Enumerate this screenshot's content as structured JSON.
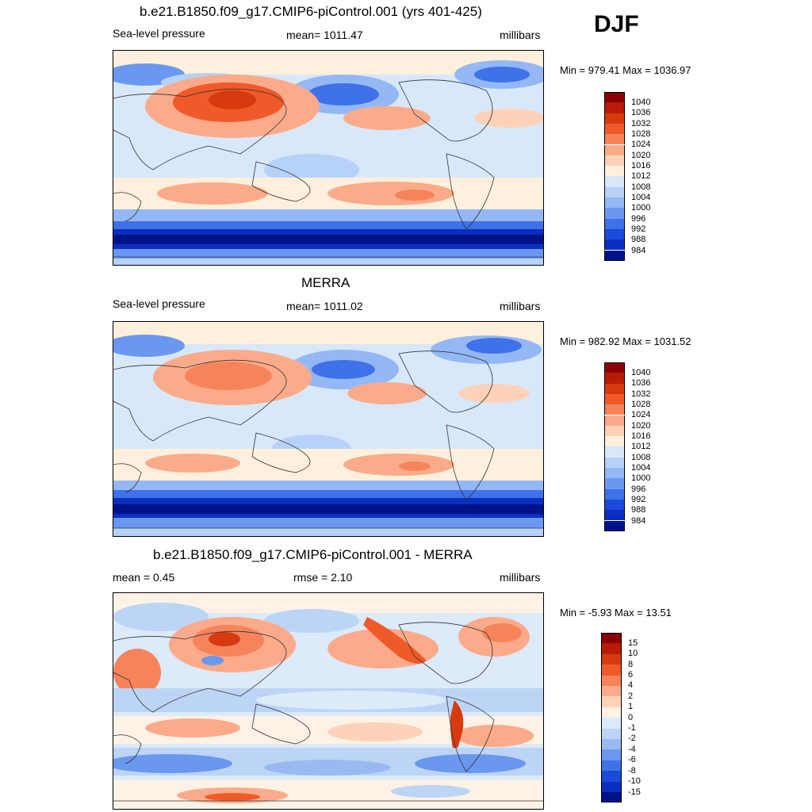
{
  "season": "DJF",
  "palette_sl": [
    "#8b0000",
    "#b81c06",
    "#d83a10",
    "#f05a2a",
    "#f6845a",
    "#fbab8a",
    "#fdd2b8",
    "#fef0dc",
    "#d8e8fb",
    "#b7d2f8",
    "#94b8f5",
    "#6a98f1",
    "#3f72e8",
    "#1a4bdb",
    "#0a2fc0",
    "#00128a"
  ],
  "palette_diff": [
    "#8b0000",
    "#b81c06",
    "#d83a10",
    "#f05a2a",
    "#f6845a",
    "#fbab8a",
    "#fdd2b8",
    "#fef2e6",
    "#dceaf9",
    "#bcd4f5",
    "#98baf1",
    "#6a98ee",
    "#3f72e6",
    "#1a4bd8",
    "#0a2fbf",
    "#00128a"
  ],
  "panels": [
    {
      "title": "b.e21.B1850.f09_g17.CMIP6-piControl.001 (yrs 401-425)",
      "left_label": "Sea-level pressure",
      "center_label": "mean= 1011.47",
      "units": "millibars",
      "minmax": "Min = 979.41 Max = 1036.97",
      "colorbar": {
        "labels": [
          "1040",
          "1036",
          "1032",
          "1028",
          "1024",
          "1020",
          "1016",
          "1012",
          "1008",
          "1004",
          "1000",
          "996",
          "992",
          "988",
          "984"
        ]
      }
    },
    {
      "title": "MERRA",
      "left_label": "Sea-level pressure",
      "center_label": "mean= 1011.02",
      "units": "millibars",
      "minmax": "Min = 982.92 Max = 1031.52",
      "colorbar": {
        "labels": [
          "1040",
          "1036",
          "1032",
          "1028",
          "1024",
          "1020",
          "1016",
          "1012",
          "1008",
          "1004",
          "1000",
          "996",
          "992",
          "988",
          "984"
        ]
      }
    },
    {
      "title": "b.e21.B1850.f09_g17.CMIP6-piControl.001 - MERRA",
      "left_label": "mean =   0.45",
      "center_label": "rmse =   2.10",
      "units": "millibars",
      "minmax": "Min =  -5.93 Max =  13.51",
      "colorbar": {
        "labels": [
          "15",
          "10",
          "8",
          "6",
          "4",
          "2",
          "1",
          "0",
          "-1",
          "-2",
          "-4",
          "-6",
          "-8",
          "-10",
          "-15"
        ]
      }
    }
  ],
  "chart_data": [
    {
      "type": "heatmap",
      "title": "b.e21.B1850.f09_g17.CMIP6-piControl.001 (yrs 401-425)",
      "variable": "Sea-level pressure",
      "units": "millibars",
      "mean": 1011.47,
      "min": 979.41,
      "max": 1036.97,
      "levels": [
        984,
        988,
        992,
        996,
        1000,
        1004,
        1008,
        1012,
        1016,
        1020,
        1024,
        1028,
        1032,
        1036,
        1040
      ],
      "projection": "cylindrical equidistant, Pacific-centered (0-360E)"
    },
    {
      "type": "heatmap",
      "title": "MERRA",
      "variable": "Sea-level pressure",
      "units": "millibars",
      "mean": 1011.02,
      "min": 982.92,
      "max": 1031.52,
      "levels": [
        984,
        988,
        992,
        996,
        1000,
        1004,
        1008,
        1012,
        1016,
        1020,
        1024,
        1028,
        1032,
        1036,
        1040
      ],
      "projection": "cylindrical equidistant, Pacific-centered (0-360E)"
    },
    {
      "type": "heatmap",
      "title": "b.e21.B1850.f09_g17.CMIP6-piControl.001 - MERRA",
      "units": "millibars",
      "mean": 0.45,
      "rmse": 2.1,
      "min": -5.93,
      "max": 13.51,
      "levels": [
        -15,
        -10,
        -8,
        -6,
        -4,
        -2,
        -1,
        0,
        1,
        2,
        4,
        6,
        8,
        10,
        15
      ],
      "projection": "cylindrical equidistant, Pacific-centered (0-360E)"
    }
  ]
}
